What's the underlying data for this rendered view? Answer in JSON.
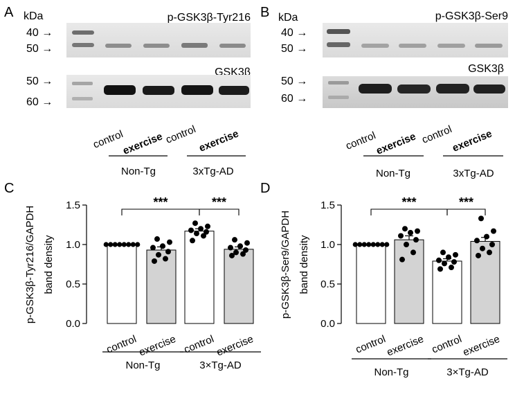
{
  "panels": {
    "A": {
      "letter": "A"
    },
    "B": {
      "letter": "B"
    },
    "C": {
      "letter": "C"
    },
    "D": {
      "letter": "D"
    }
  },
  "blots": {
    "unit": "kDa",
    "A": {
      "top_title": "p-GSK3β-Tyr216",
      "bottom_title": "GSK3β",
      "top_markers": [
        "40 →",
        "50 →"
      ],
      "bottom_markers": [
        "50 →",
        "60 →"
      ]
    },
    "B": {
      "top_title": "p-GSK3β-Ser9",
      "bottom_title": "GSK3β",
      "top_markers": [
        "40 →",
        "50 →"
      ],
      "bottom_markers": [
        "50 →",
        "60 →"
      ]
    },
    "lanes": [
      "control",
      "exercise",
      "control",
      "exercise"
    ],
    "groups": [
      "Non-Tg",
      "3xTg-AD"
    ]
  },
  "chart_data": [
    {
      "type": "bar",
      "panel": "C",
      "ylabel_line1": "p-GSK3β-Tyr216/GAPDH",
      "ylabel_line2": "band density",
      "categories": [
        "control",
        "exercise",
        "control",
        "exercise"
      ],
      "groups": [
        "Non-Tg",
        "3×Tg-AD"
      ],
      "values": [
        1.0,
        0.93,
        1.17,
        0.94
      ],
      "errors": [
        0.0,
        0.04,
        0.03,
        0.03
      ],
      "points": [
        [
          1.0,
          1.0,
          1.0,
          1.0,
          1.0,
          1.0,
          1.0,
          1.0
        ],
        [
          0.79,
          0.82,
          0.87,
          0.91,
          0.96,
          0.98,
          1.03,
          1.07
        ],
        [
          1.05,
          1.11,
          1.14,
          1.16,
          1.18,
          1.2,
          1.23,
          1.27
        ],
        [
          0.86,
          0.88,
          0.9,
          0.93,
          0.96,
          0.98,
          1.02,
          1.06
        ]
      ],
      "bar_colors": [
        "#ffffff",
        "#d3d3d3",
        "#ffffff",
        "#d3d3d3"
      ],
      "ylim": [
        0,
        1.5
      ],
      "yticks": [
        "0.0",
        "0.5",
        "1.0",
        "1.5"
      ],
      "significance": [
        {
          "from": 0,
          "to": 2,
          "label": "***"
        },
        {
          "from": 2,
          "to": 3,
          "label": "***"
        }
      ]
    },
    {
      "type": "bar",
      "panel": "D",
      "ylabel_line1": "p-GSK3β-Ser9/GAPDH",
      "ylabel_line2": "band density",
      "categories": [
        "control",
        "exercise",
        "control",
        "exercise"
      ],
      "groups": [
        "Non-Tg",
        "3×Tg-AD"
      ],
      "values": [
        1.0,
        1.06,
        0.79,
        1.04
      ],
      "errors": [
        0.0,
        0.05,
        0.03,
        0.05
      ],
      "points": [
        [
          1.0,
          1.0,
          1.0,
          1.0,
          1.0,
          1.0,
          1.0,
          1.0
        ],
        [
          0.81,
          0.9,
          1.0,
          1.06,
          1.11,
          1.15,
          1.17,
          1.2
        ],
        [
          0.69,
          0.71,
          0.76,
          0.78,
          0.8,
          0.84,
          0.87,
          0.9
        ],
        [
          0.86,
          0.9,
          0.95,
          1.0,
          1.05,
          1.1,
          1.17,
          1.33
        ]
      ],
      "bar_colors": [
        "#ffffff",
        "#d3d3d3",
        "#ffffff",
        "#d3d3d3"
      ],
      "ylim": [
        0,
        1.5
      ],
      "yticks": [
        "0.0",
        "0.5",
        "1.0",
        "1.5"
      ],
      "significance": [
        {
          "from": 0,
          "to": 2,
          "label": "***"
        },
        {
          "from": 2,
          "to": 3,
          "label": "***"
        }
      ]
    }
  ]
}
